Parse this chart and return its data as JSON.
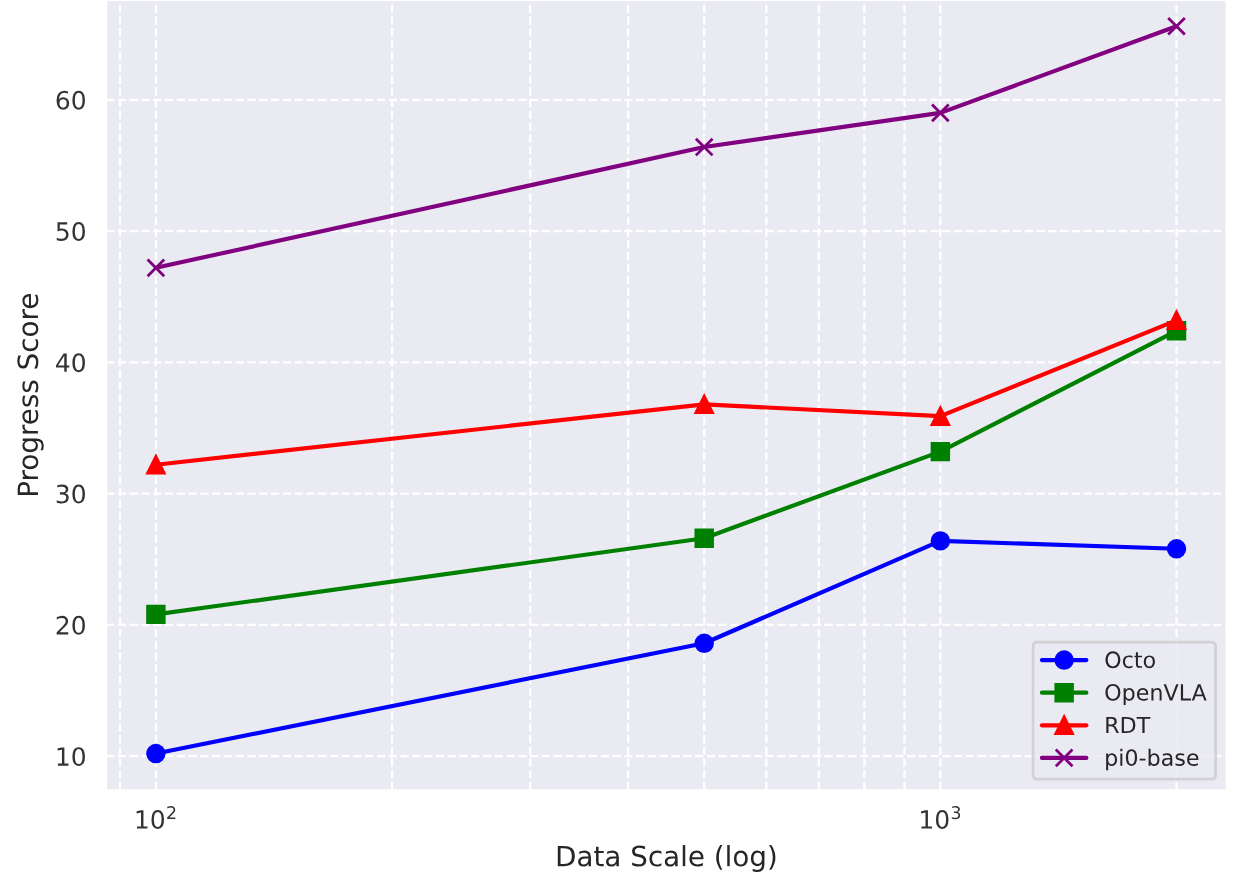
{
  "chart_data": {
    "type": "line",
    "xlabel": "Data Scale (log)",
    "ylabel": "Progress Score",
    "x": [
      100,
      500,
      1000,
      2000
    ],
    "log": "x",
    "xlim": [
      86.4,
      2318
    ],
    "xticks": [
      {
        "value": 100,
        "label": "10$^{2}$"
      },
      {
        "value": 1000,
        "label": "10$^{3}$"
      }
    ],
    "ylim": [
      7.4,
      67.6
    ],
    "yticks": [
      10,
      20,
      30,
      40,
      50,
      60
    ],
    "grid": true,
    "legend": "bottom right",
    "line_style": "solid",
    "series": [
      {
        "name": "Octo",
        "color": "#0000ff",
        "marker": "circle",
        "values": [
          10.2,
          18.6,
          26.4,
          25.8
        ]
      },
      {
        "name": "OpenVLA",
        "color": "#008000",
        "marker": "square",
        "values": [
          20.8,
          26.6,
          33.2,
          42.4
        ]
      },
      {
        "name": "RDT",
        "color": "#ff0000",
        "marker": "triangle",
        "values": [
          32.2,
          36.8,
          35.9,
          43.2
        ]
      },
      {
        "name": "pi0-base",
        "color": "#800080",
        "marker": "cross",
        "values": [
          47.2,
          56.4,
          59.0,
          65.6
        ]
      }
    ]
  }
}
